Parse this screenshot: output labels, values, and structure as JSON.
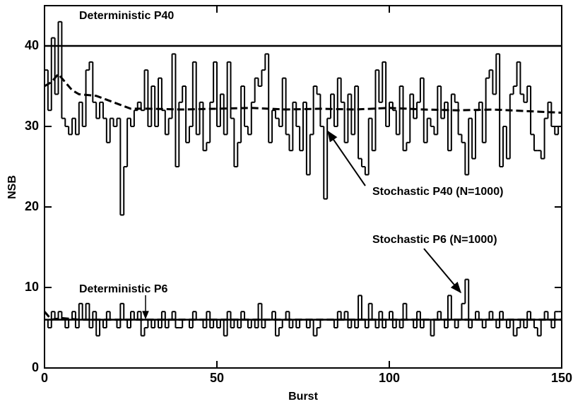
{
  "chart_data": {
    "type": "step",
    "xlabel": "Burst",
    "ylabel": "NSB",
    "xlim": [
      0,
      150
    ],
    "xticks": [
      0,
      50,
      100,
      150
    ],
    "ylim": [
      0,
      45
    ],
    "yticks": [
      0,
      10,
      20,
      30,
      40
    ],
    "x": [
      0,
      1,
      2,
      3,
      4,
      5,
      6,
      7,
      8,
      9,
      10,
      11,
      12,
      13,
      14,
      15,
      16,
      17,
      18,
      19,
      20,
      21,
      22,
      23,
      24,
      25,
      26,
      27,
      28,
      29,
      30,
      31,
      32,
      33,
      34,
      35,
      36,
      37,
      38,
      39,
      40,
      41,
      42,
      43,
      44,
      45,
      46,
      47,
      48,
      49,
      50,
      51,
      52,
      53,
      54,
      55,
      56,
      57,
      58,
      59,
      60,
      61,
      62,
      63,
      64,
      65,
      66,
      67,
      68,
      69,
      70,
      71,
      72,
      73,
      74,
      75,
      76,
      77,
      78,
      79,
      80,
      81,
      82,
      83,
      84,
      85,
      86,
      87,
      88,
      89,
      90,
      91,
      92,
      93,
      94,
      95,
      96,
      97,
      98,
      99,
      100,
      101,
      102,
      103,
      104,
      105,
      106,
      107,
      108,
      109,
      110,
      111,
      112,
      113,
      114,
      115,
      116,
      117,
      118,
      119,
      120,
      121,
      122,
      123,
      124,
      125,
      126,
      127,
      128,
      129,
      130,
      131,
      132,
      133,
      134,
      135,
      136,
      137,
      138,
      139,
      140,
      141,
      142,
      143,
      144,
      145,
      146,
      147,
      148,
      149
    ],
    "series": [
      {
        "name": "Deterministic P40",
        "color": "#000000",
        "style": "solid",
        "x": [
          0,
          150
        ],
        "values": [
          40,
          40
        ]
      },
      {
        "name": "Deterministic P6",
        "color": "#000000",
        "style": "solid",
        "x": [
          0,
          150
        ],
        "values": [
          6,
          6
        ]
      },
      {
        "name": "Stochastic P40 (N=1000)",
        "color": "#000000",
        "style": "step",
        "values": [
          37,
          32,
          41,
          34,
          43,
          31,
          30,
          29,
          31,
          29,
          33,
          30,
          37,
          38,
          33,
          31,
          33,
          31,
          28,
          31,
          30,
          31,
          19,
          25,
          31,
          30,
          32,
          33,
          32,
          37,
          30,
          35,
          30,
          36,
          32,
          29,
          31,
          39,
          25,
          33,
          35,
          28,
          30,
          38,
          29,
          33,
          27,
          28,
          33,
          38,
          30,
          34,
          29,
          38,
          31,
          25,
          28,
          35,
          30,
          29,
          33,
          36,
          35,
          37,
          39,
          28,
          32,
          31,
          30,
          36,
          29,
          27,
          33,
          30,
          27,
          33,
          24,
          29,
          35,
          34,
          30,
          21,
          31,
          34,
          30,
          36,
          33,
          28,
          34,
          29,
          35,
          26,
          25,
          24,
          31,
          27,
          37,
          33,
          38,
          30,
          33,
          32,
          29,
          35,
          27,
          28,
          34,
          31,
          33,
          36,
          28,
          31,
          30,
          29,
          35,
          31,
          33,
          27,
          34,
          33,
          29,
          28,
          24,
          31,
          26,
          32,
          33,
          28,
          36,
          37,
          34,
          39,
          25,
          30,
          26,
          34,
          35,
          38,
          34,
          33,
          35,
          29,
          27,
          27,
          26,
          31,
          33,
          30,
          29,
          30
        ]
      },
      {
        "name": "Stochastic P6 (N=1000)",
        "color": "#000000",
        "style": "step",
        "values": [
          6,
          5,
          7,
          6,
          7,
          6,
          5,
          6,
          7,
          5,
          8,
          6,
          8,
          5,
          7,
          4,
          6,
          5,
          7,
          6,
          6,
          5,
          8,
          6,
          5,
          7,
          6,
          7,
          4,
          5,
          6,
          5,
          6,
          5,
          7,
          5,
          6,
          7,
          5,
          5,
          6,
          6,
          5,
          7,
          6,
          6,
          5,
          7,
          5,
          6,
          5,
          6,
          4,
          7,
          5,
          6,
          5,
          7,
          6,
          5,
          6,
          5,
          8,
          5,
          6,
          6,
          7,
          4,
          5,
          6,
          7,
          5,
          6,
          5,
          6,
          6,
          5,
          6,
          4,
          5,
          6,
          6,
          6,
          6,
          5,
          7,
          6,
          7,
          5,
          6,
          5,
          9,
          6,
          5,
          8,
          6,
          5,
          7,
          5,
          6,
          7,
          5,
          6,
          5,
          8,
          6,
          6,
          5,
          7,
          5,
          6,
          6,
          4,
          6,
          7,
          6,
          5,
          9,
          6,
          5,
          6,
          8,
          11,
          5,
          6,
          7,
          6,
          5,
          6,
          7,
          6,
          5,
          7,
          6,
          5,
          6,
          4,
          5,
          6,
          5,
          7,
          6,
          5,
          4,
          6,
          7,
          6,
          5,
          7,
          7
        ]
      },
      {
        "color": "#000000",
        "style": "dashed",
        "x": [
          0,
          2,
          4,
          6,
          8,
          10,
          15,
          20,
          25,
          30,
          40,
          50,
          60,
          70,
          80,
          90,
          100,
          110,
          120,
          130,
          140,
          150
        ],
        "values": [
          35,
          35.5,
          36.5,
          35.5,
          34.5,
          34,
          33.8,
          33,
          32.2,
          32.2,
          32.1,
          32.2,
          32.3,
          32.1,
          32.2,
          32.1,
          32.3,
          32.1,
          32,
          32.1,
          31.9,
          31.7
        ]
      },
      {
        "color": "#000000",
        "style": "dashed",
        "x": [
          0,
          1,
          2,
          5,
          10,
          20,
          150
        ],
        "values": [
          7,
          6.5,
          6,
          6.2,
          6,
          6,
          6
        ]
      }
    ]
  }
}
